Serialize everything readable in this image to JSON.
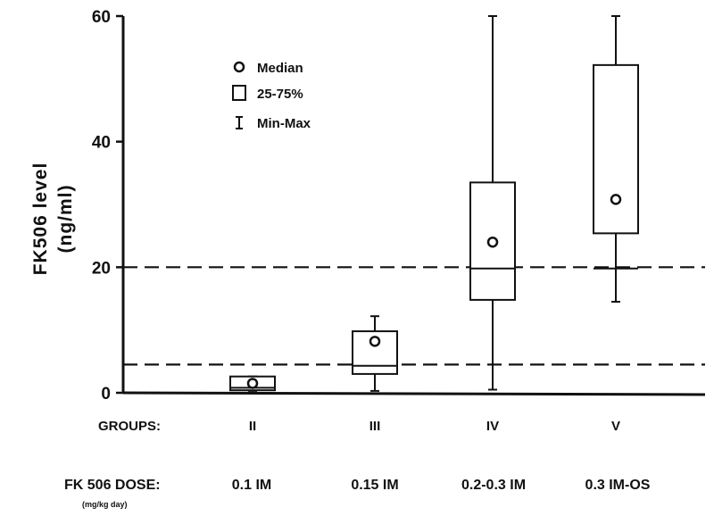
{
  "chart_data": {
    "type": "box",
    "ylabel_line1": "FK506 level",
    "ylabel_line2": "(ng/ml)",
    "ylim": [
      0,
      60
    ],
    "yticks": [
      0,
      20,
      40,
      60
    ],
    "groups_label": "GROUPS:",
    "dose_label": "FK 506 DOSE:",
    "dose_unit": "(mg/kg day)",
    "categories": [
      "II",
      "III",
      "IV",
      "V"
    ],
    "doses": [
      "0.1 IM",
      "0.15 IM",
      "0.2-0.3 IM",
      "0.3 IM-OS"
    ],
    "boxes": [
      {
        "min": 0.3,
        "q1": 0.4,
        "median": 1.5,
        "q3": 2.6,
        "max": 2.6,
        "mid": 0.8
      },
      {
        "min": 0.3,
        "q1": 3.0,
        "median": 8.2,
        "q3": 9.8,
        "max": 12.2,
        "mid": 4.3
      },
      {
        "min": 0.5,
        "q1": 14.8,
        "median": 24.0,
        "q3": 33.5,
        "max": 60,
        "mid": 19.8
      },
      {
        "min": 14.5,
        "q1": 25.4,
        "median": 30.8,
        "q3": 52.2,
        "max": 60,
        "mid": 19.8
      }
    ],
    "reference_lines": [
      4.5,
      20
    ],
    "legend": {
      "position": "top-left",
      "median": "Median",
      "box": "25-75%",
      "range": "Min-Max"
    },
    "grid": false
  }
}
